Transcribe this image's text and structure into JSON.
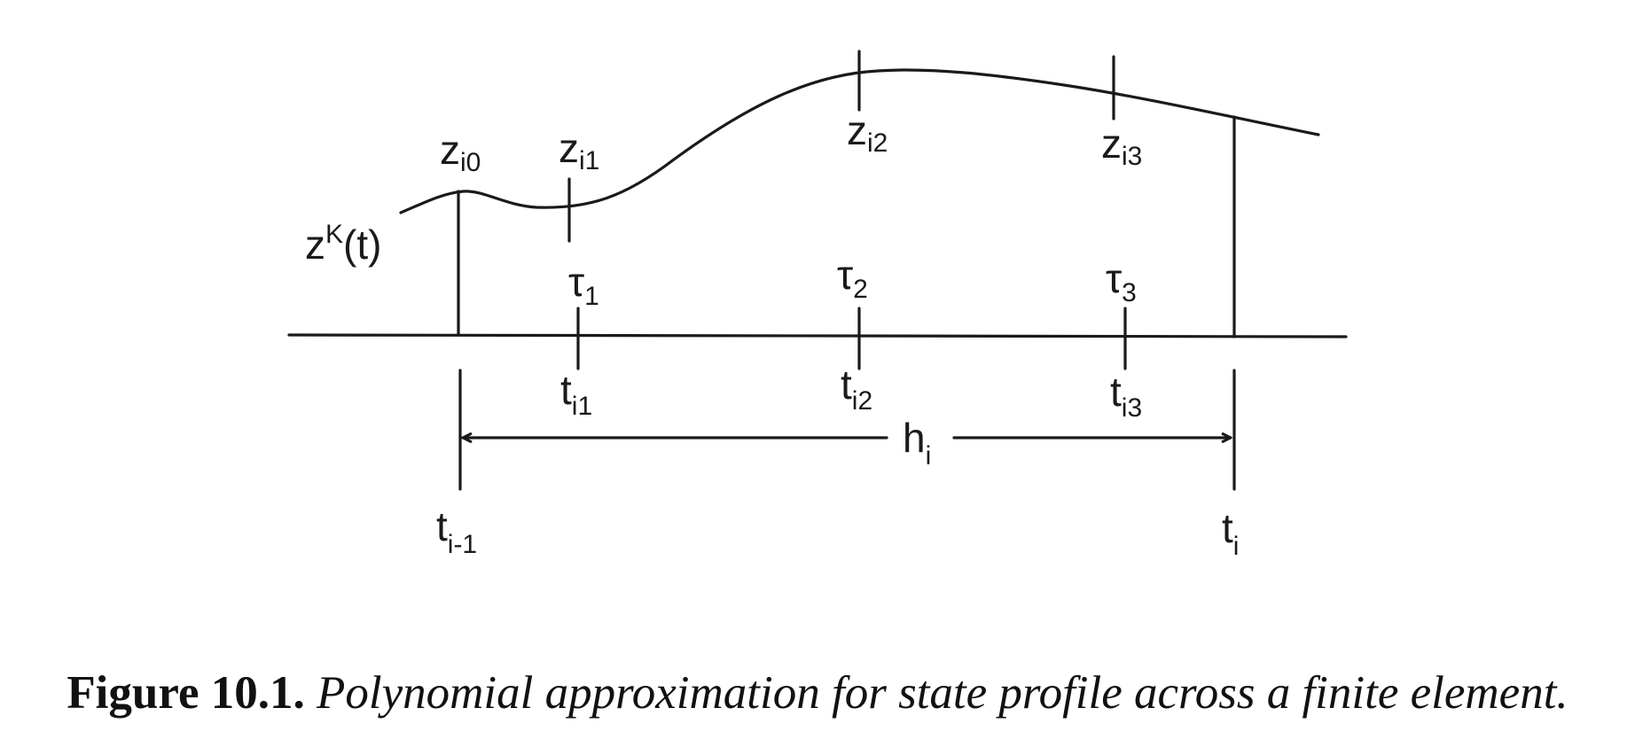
{
  "figure": {
    "curve_label": {
      "base": "z",
      "sup": "K",
      "tail": "(t)"
    },
    "collocation_values": [
      {
        "base": "z",
        "sub": "i0"
      },
      {
        "base": "z",
        "sub": "i1"
      },
      {
        "base": "z",
        "sub": "i2"
      },
      {
        "base": "z",
        "sub": "i3"
      }
    ],
    "tau_labels": [
      {
        "base": "τ",
        "sub": "1"
      },
      {
        "base": "τ",
        "sub": "2"
      },
      {
        "base": "τ",
        "sub": "3"
      }
    ],
    "time_points": [
      {
        "base": "t",
        "sub": "i1"
      },
      {
        "base": "t",
        "sub": "i2"
      },
      {
        "base": "t",
        "sub": "i3"
      }
    ],
    "element_bounds": [
      {
        "base": "t",
        "sub": "i-1"
      },
      {
        "base": "t",
        "sub": "i"
      }
    ],
    "element_length": {
      "base": "h",
      "sub": "i"
    }
  },
  "caption": {
    "number": "Figure 10.1.",
    "text": "Polynomial approximation for state profile across a finite element."
  }
}
